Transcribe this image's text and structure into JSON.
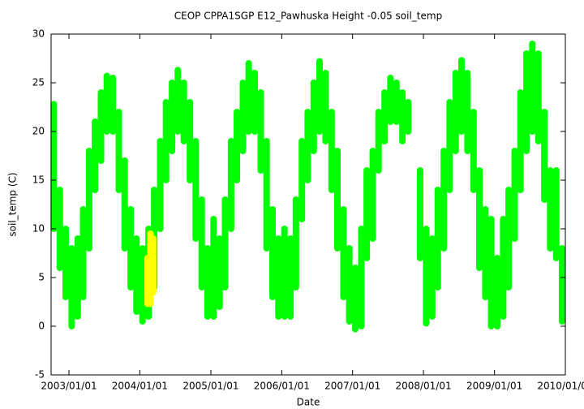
{
  "chart_data": {
    "type": "range",
    "title": "CEOP CPPA1SGP E12_Pawhuska Height -0.05 soil_temp",
    "xlabel": "Date",
    "ylabel": "soil_temp (C)",
    "xlim": [
      "2002/10/01",
      "2010/01/01"
    ],
    "xticks": [
      "2003/01/01",
      "2004/01/01",
      "2005/01/01",
      "2006/01/01",
      "2007/01/01",
      "2008/01/01",
      "2009/01/01",
      "2010/01/01"
    ],
    "ylim": [
      -5,
      30
    ],
    "yticks": [
      -5,
      0,
      5,
      10,
      15,
      20,
      25,
      30
    ],
    "series": [
      {
        "color": "#00ff00",
        "x": [
          "2002/10/15",
          "2002/11/15",
          "2002/12/15",
          "2003/01/15",
          "2003/02/15",
          "2003/03/15",
          "2003/04/15",
          "2003/05/15",
          "2003/06/15",
          "2003/07/15",
          "2003/08/15",
          "2003/09/15",
          "2003/10/15",
          "2003/11/15",
          "2003/12/15",
          "2004/01/15",
          "2004/02/15",
          "2004/03/15",
          "2004/04/15",
          "2004/05/15",
          "2004/06/15",
          "2004/07/15",
          "2004/08/15",
          "2004/09/15",
          "2004/10/15",
          "2004/11/15",
          "2004/12/15",
          "2005/01/15",
          "2005/02/15",
          "2005/03/15",
          "2005/04/15",
          "2005/05/15",
          "2005/06/15",
          "2005/07/15",
          "2005/08/15",
          "2005/09/15",
          "2005/10/15",
          "2005/11/15",
          "2005/12/15",
          "2006/01/15",
          "2006/02/15",
          "2006/03/15",
          "2006/04/15",
          "2006/05/15",
          "2006/06/15",
          "2006/07/15",
          "2006/08/15",
          "2006/09/15",
          "2006/10/15",
          "2006/11/15",
          "2006/12/15",
          "2007/01/15",
          "2007/02/15",
          "2007/03/15",
          "2007/04/15",
          "2007/05/15",
          "2007/06/15",
          "2007/07/15",
          "2007/08/15",
          "2007/09/15",
          "2007/10/15",
          "2007/11/15",
          "2007/12/15",
          "2008/01/15",
          "2008/02/15",
          "2008/03/15",
          "2008/04/15",
          "2008/05/15",
          "2008/06/15",
          "2008/07/15",
          "2008/08/15",
          "2008/09/15",
          "2008/10/15",
          "2008/11/15",
          "2008/12/15",
          "2009/01/15",
          "2009/02/15",
          "2009/03/15",
          "2009/04/15",
          "2009/05/15",
          "2009/06/15",
          "2009/07/15",
          "2009/08/15",
          "2009/09/15",
          "2009/10/15",
          "2009/11/15",
          "2009/12/15"
        ],
        "high": [
          22.8,
          14,
          10,
          8,
          9,
          12,
          18,
          21,
          24,
          25.7,
          25.5,
          22,
          17,
          12,
          9,
          8,
          10,
          14,
          19,
          23,
          25,
          26.3,
          25,
          23,
          19,
          13,
          8,
          11,
          9,
          13,
          19,
          22,
          25,
          27,
          26,
          24,
          19,
          12,
          9,
          10,
          9,
          13,
          19,
          22,
          25,
          27.2,
          26,
          22,
          18,
          12,
          8,
          6,
          10,
          16,
          18,
          22,
          24,
          25.5,
          25,
          24,
          23,
          null,
          16,
          10,
          9,
          14,
          18,
          23,
          26,
          27.3,
          26,
          22,
          16,
          12,
          11,
          7,
          11,
          14,
          18,
          24,
          28,
          29,
          28,
          22,
          16,
          16,
          8
        ],
        "low": [
          10,
          6,
          3,
          0,
          1,
          3,
          8,
          14,
          17,
          20,
          20,
          14,
          8,
          4,
          1.5,
          0.5,
          1,
          4,
          10,
          15,
          18,
          20,
          19,
          15,
          9,
          4,
          1,
          1,
          2,
          4,
          10,
          15,
          18,
          20,
          20,
          16,
          8,
          3,
          1,
          1,
          1,
          4,
          11,
          15,
          18,
          20,
          19,
          14,
          8,
          3,
          0.5,
          -0.3,
          0,
          7,
          9,
          16,
          19,
          21,
          21,
          19,
          20,
          null,
          7,
          0.3,
          1,
          4,
          8,
          14,
          18,
          20,
          18,
          14,
          6,
          3,
          0,
          0,
          1,
          4,
          9,
          14,
          18,
          20,
          19,
          13,
          8,
          7,
          0.5
        ]
      },
      {
        "color": "#ffff00",
        "x": [
          "2004/02/10",
          "2004/02/25",
          "2004/03/10"
        ],
        "high": [
          7,
          9.5,
          9
        ],
        "low": [
          2.3,
          2.3,
          3.5
        ]
      }
    ]
  }
}
